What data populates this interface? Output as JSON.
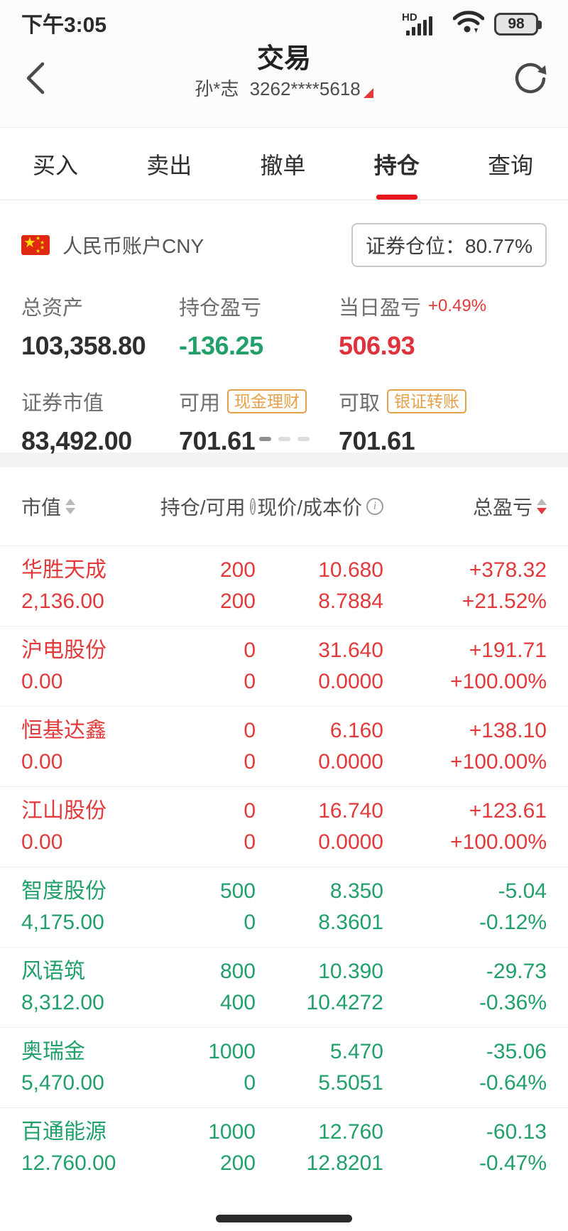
{
  "status_bar": {
    "time": "下午3:05",
    "network_label": "HD",
    "battery_percent": "98"
  },
  "header": {
    "title": "交易",
    "account_name": "孙*志",
    "account_number": "3262****5618"
  },
  "tabs": [
    {
      "label": "买入",
      "active": false
    },
    {
      "label": "卖出",
      "active": false
    },
    {
      "label": "撤单",
      "active": false
    },
    {
      "label": "持仓",
      "active": true
    },
    {
      "label": "查询",
      "active": false
    }
  ],
  "account": {
    "flag": "china-flag",
    "account_type": "人民币账户CNY",
    "position_ratio_label": "证券仓位：",
    "position_ratio_value": "80.77%",
    "metrics_row1": [
      {
        "label": "总资产",
        "value": "103,358.80",
        "color": "dark"
      },
      {
        "label": "持仓盈亏",
        "value": "-136.25",
        "color": "green"
      },
      {
        "label": "当日盈亏",
        "sub": "+0.49%",
        "value": "506.93",
        "color": "red"
      }
    ],
    "metrics_row2": [
      {
        "label": "证券市值",
        "value": "83,492.00",
        "color": "dark"
      },
      {
        "label": "可用",
        "badge": "现金理财",
        "value": "701.61",
        "color": "dark"
      },
      {
        "label": "可取",
        "badge": "银证转账",
        "value": "701.61",
        "color": "dark"
      }
    ],
    "page_dots": 3,
    "active_dot": 0
  },
  "holdings": {
    "columns": [
      {
        "label": "市值",
        "icon": "sort",
        "sort_state": "none"
      },
      {
        "label": "持仓/可用",
        "icon": "info"
      },
      {
        "label": "现价/成本价",
        "icon": "info"
      },
      {
        "label": "总盈亏",
        "icon": "sort",
        "sort_state": "desc"
      }
    ],
    "rows": [
      {
        "name": "华胜天成",
        "market_value": "2,136.00",
        "position": "200",
        "available": "200",
        "price": "10.680",
        "cost": "8.7884",
        "profit": "+378.32",
        "profit_pct": "+21.52%",
        "trend": "up"
      },
      {
        "name": "沪电股份",
        "market_value": "0.00",
        "position": "0",
        "available": "0",
        "price": "31.640",
        "cost": "0.0000",
        "profit": "+191.71",
        "profit_pct": "+100.00%",
        "trend": "up"
      },
      {
        "name": "恒基达鑫",
        "market_value": "0.00",
        "position": "0",
        "available": "0",
        "price": "6.160",
        "cost": "0.0000",
        "profit": "+138.10",
        "profit_pct": "+100.00%",
        "trend": "up"
      },
      {
        "name": "江山股份",
        "market_value": "0.00",
        "position": "0",
        "available": "0",
        "price": "16.740",
        "cost": "0.0000",
        "profit": "+123.61",
        "profit_pct": "+100.00%",
        "trend": "up"
      },
      {
        "name": "智度股份",
        "market_value": "4,175.00",
        "position": "500",
        "available": "0",
        "price": "8.350",
        "cost": "8.3601",
        "profit": "-5.04",
        "profit_pct": "-0.12%",
        "trend": "down"
      },
      {
        "name": "风语筑",
        "market_value": "8,312.00",
        "position": "800",
        "available": "400",
        "price": "10.390",
        "cost": "10.4272",
        "profit": "-29.73",
        "profit_pct": "-0.36%",
        "trend": "down"
      },
      {
        "name": "奥瑞金",
        "market_value": "5,470.00",
        "position": "1000",
        "available": "0",
        "price": "5.470",
        "cost": "5.5051",
        "profit": "-35.06",
        "profit_pct": "-0.64%",
        "trend": "down"
      },
      {
        "name": "百通能源",
        "market_value": "12.760.00",
        "position": "1000",
        "available": "200",
        "price": "12.760",
        "cost": "12.8201",
        "profit": "-60.13",
        "profit_pct": "-0.47%",
        "trend": "down"
      }
    ]
  },
  "colors": {
    "up_red": "#e23a3a",
    "down_green": "#21a06a",
    "tab_accent": "#e8151d",
    "badge_orange": "#e5a14a"
  }
}
